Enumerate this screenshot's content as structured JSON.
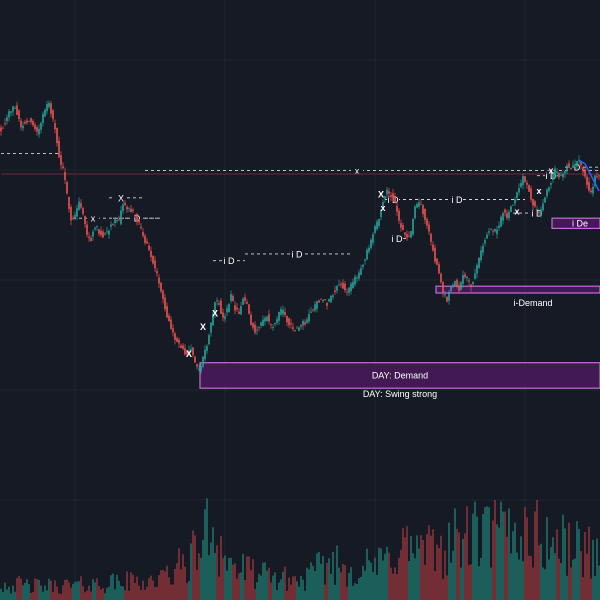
{
  "chart_data": {
    "type": "candlestick",
    "colors": {
      "background": "#161a25",
      "bull": "#26a69a",
      "bear": "#ef5350",
      "zone_fill": "#4a1a5c",
      "zone_border": "#c76bd9",
      "guide": "#d1d4dc",
      "red_line": "#6e2a36",
      "blue_line": "#2962ff",
      "volume_bull": "#1e6f68",
      "volume_bear": "#8a3338"
    },
    "y_range": [
      0,
      100
    ],
    "price_path": [
      {
        "i": 0,
        "p": 78
      },
      {
        "i": 4,
        "p": 83
      },
      {
        "i": 7,
        "p": 85
      },
      {
        "i": 10,
        "p": 79
      },
      {
        "i": 14,
        "p": 81
      },
      {
        "i": 18,
        "p": 77
      },
      {
        "i": 22,
        "p": 84
      },
      {
        "i": 24,
        "p": 86
      },
      {
        "i": 27,
        "p": 78
      },
      {
        "i": 29,
        "p": 70
      },
      {
        "i": 31,
        "p": 66
      },
      {
        "i": 33,
        "p": 59
      },
      {
        "i": 35,
        "p": 52
      },
      {
        "i": 37,
        "p": 53
      },
      {
        "i": 39,
        "p": 57
      },
      {
        "i": 41,
        "p": 53
      },
      {
        "i": 43,
        "p": 47
      },
      {
        "i": 45,
        "p": 46
      },
      {
        "i": 47,
        "p": 50
      },
      {
        "i": 49,
        "p": 48
      },
      {
        "i": 51,
        "p": 47
      },
      {
        "i": 53,
        "p": 48
      },
      {
        "i": 55,
        "p": 50
      },
      {
        "i": 57,
        "p": 51
      },
      {
        "i": 59,
        "p": 51
      },
      {
        "i": 61,
        "p": 56
      },
      {
        "i": 63,
        "p": 55
      },
      {
        "i": 65,
        "p": 54
      },
      {
        "i": 67,
        "p": 53
      },
      {
        "i": 69,
        "p": 50
      },
      {
        "i": 71,
        "p": 47
      },
      {
        "i": 73,
        "p": 44
      },
      {
        "i": 75,
        "p": 41
      },
      {
        "i": 77,
        "p": 37
      },
      {
        "i": 79,
        "p": 33
      },
      {
        "i": 81,
        "p": 29
      },
      {
        "i": 83,
        "p": 23
      },
      {
        "i": 85,
        "p": 20
      },
      {
        "i": 87,
        "p": 17
      },
      {
        "i": 89,
        "p": 15
      },
      {
        "i": 91,
        "p": 13
      },
      {
        "i": 93,
        "p": 12
      },
      {
        "i": 95,
        "p": 14
      },
      {
        "i": 97,
        "p": 9
      },
      {
        "i": 99,
        "p": 7
      },
      {
        "i": 101,
        "p": 11
      },
      {
        "i": 103,
        "p": 15
      },
      {
        "i": 105,
        "p": 21
      },
      {
        "i": 107,
        "p": 28
      },
      {
        "i": 109,
        "p": 27
      },
      {
        "i": 111,
        "p": 22
      },
      {
        "i": 113,
        "p": 25
      },
      {
        "i": 115,
        "p": 29
      },
      {
        "i": 117,
        "p": 25
      },
      {
        "i": 119,
        "p": 24
      },
      {
        "i": 121,
        "p": 28
      },
      {
        "i": 123,
        "p": 27
      },
      {
        "i": 125,
        "p": 21
      },
      {
        "i": 127,
        "p": 19
      },
      {
        "i": 129,
        "p": 20
      },
      {
        "i": 131,
        "p": 22
      },
      {
        "i": 133,
        "p": 23
      },
      {
        "i": 135,
        "p": 20
      },
      {
        "i": 137,
        "p": 21
      },
      {
        "i": 139,
        "p": 24
      },
      {
        "i": 141,
        "p": 25
      },
      {
        "i": 143,
        "p": 22
      },
      {
        "i": 145,
        "p": 20
      },
      {
        "i": 147,
        "p": 19
      },
      {
        "i": 149,
        "p": 20
      },
      {
        "i": 151,
        "p": 21
      },
      {
        "i": 153,
        "p": 22
      },
      {
        "i": 155,
        "p": 25
      },
      {
        "i": 157,
        "p": 26
      },
      {
        "i": 159,
        "p": 28
      },
      {
        "i": 161,
        "p": 28
      },
      {
        "i": 163,
        "p": 27
      },
      {
        "i": 165,
        "p": 29
      },
      {
        "i": 167,
        "p": 31
      },
      {
        "i": 169,
        "p": 33
      },
      {
        "i": 171,
        "p": 32
      },
      {
        "i": 173,
        "p": 30
      },
      {
        "i": 175,
        "p": 32
      },
      {
        "i": 177,
        "p": 34
      },
      {
        "i": 179,
        "p": 36
      },
      {
        "i": 181,
        "p": 39
      },
      {
        "i": 183,
        "p": 42
      },
      {
        "i": 185,
        "p": 45
      },
      {
        "i": 187,
        "p": 49
      },
      {
        "i": 189,
        "p": 52
      },
      {
        "i": 191,
        "p": 57
      },
      {
        "i": 193,
        "p": 60
      },
      {
        "i": 195,
        "p": 59
      },
      {
        "i": 197,
        "p": 56
      },
      {
        "i": 199,
        "p": 51
      },
      {
        "i": 201,
        "p": 48
      },
      {
        "i": 203,
        "p": 46
      },
      {
        "i": 205,
        "p": 48
      },
      {
        "i": 207,
        "p": 55
      },
      {
        "i": 209,
        "p": 57
      },
      {
        "i": 211,
        "p": 54
      },
      {
        "i": 213,
        "p": 50
      },
      {
        "i": 215,
        "p": 45
      },
      {
        "i": 217,
        "p": 40
      },
      {
        "i": 219,
        "p": 36
      },
      {
        "i": 221,
        "p": 30
      },
      {
        "i": 223,
        "p": 28
      },
      {
        "i": 225,
        "p": 32
      },
      {
        "i": 227,
        "p": 34
      },
      {
        "i": 229,
        "p": 31
      },
      {
        "i": 231,
        "p": 36
      },
      {
        "i": 233,
        "p": 34
      },
      {
        "i": 235,
        "p": 32
      },
      {
        "i": 237,
        "p": 36
      },
      {
        "i": 239,
        "p": 40
      },
      {
        "i": 241,
        "p": 44
      },
      {
        "i": 243,
        "p": 47
      },
      {
        "i": 245,
        "p": 49
      },
      {
        "i": 247,
        "p": 48
      },
      {
        "i": 249,
        "p": 50
      },
      {
        "i": 251,
        "p": 54
      },
      {
        "i": 253,
        "p": 52
      },
      {
        "i": 255,
        "p": 55
      },
      {
        "i": 257,
        "p": 58
      },
      {
        "i": 259,
        "p": 61
      },
      {
        "i": 261,
        "p": 64
      },
      {
        "i": 263,
        "p": 62
      },
      {
        "i": 265,
        "p": 58
      },
      {
        "i": 267,
        "p": 55
      },
      {
        "i": 269,
        "p": 53
      },
      {
        "i": 271,
        "p": 57
      },
      {
        "i": 273,
        "p": 60
      },
      {
        "i": 275,
        "p": 63
      },
      {
        "i": 277,
        "p": 66
      },
      {
        "i": 279,
        "p": 64
      },
      {
        "i": 281,
        "p": 65
      },
      {
        "i": 283,
        "p": 68
      },
      {
        "i": 285,
        "p": 67
      },
      {
        "i": 287,
        "p": 68
      },
      {
        "i": 289,
        "p": 69
      },
      {
        "i": 291,
        "p": 66
      },
      {
        "i": 293,
        "p": 62
      },
      {
        "i": 295,
        "p": 59
      },
      {
        "i": 297,
        "p": 64
      }
    ],
    "volume_profile": [
      {
        "i": 0,
        "v": 12
      },
      {
        "i": 20,
        "v": 10
      },
      {
        "i": 40,
        "v": 11
      },
      {
        "i": 60,
        "v": 13
      },
      {
        "i": 80,
        "v": 15
      },
      {
        "i": 95,
        "v": 30
      },
      {
        "i": 105,
        "v": 55
      },
      {
        "i": 115,
        "v": 25
      },
      {
        "i": 130,
        "v": 18
      },
      {
        "i": 150,
        "v": 14
      },
      {
        "i": 165,
        "v": 28
      },
      {
        "i": 175,
        "v": 22
      },
      {
        "i": 190,
        "v": 26
      },
      {
        "i": 200,
        "v": 40
      },
      {
        "i": 215,
        "v": 35
      },
      {
        "i": 230,
        "v": 45
      },
      {
        "i": 245,
        "v": 48
      },
      {
        "i": 260,
        "v": 52
      },
      {
        "i": 275,
        "v": 42
      },
      {
        "i": 290,
        "v": 38
      },
      {
        "i": 299,
        "v": 35
      }
    ],
    "zones": [
      {
        "name": "day-demand",
        "label": "DAY: Demand",
        "sublabel": "DAY: Swing strong",
        "x0": 100,
        "x1": 299,
        "top": 9.5,
        "bottom": 2
      },
      {
        "name": "i-demand",
        "label": "i-Demand",
        "sublabel": "",
        "x0": 218,
        "x1": 299,
        "top": 32,
        "bottom": 30
      },
      {
        "name": "i-demand-small",
        "label": "i De",
        "sublabel": "",
        "x0": 276,
        "x1": 299,
        "top": 52,
        "bottom": 49
      }
    ],
    "levels": [
      {
        "name": "left-swing-level",
        "style": "dashed",
        "y": 71,
        "x0": 0,
        "x1": 30,
        "label": "",
        "label_at": 0
      },
      {
        "name": "x-level-top",
        "style": "dashed",
        "y": 66,
        "x0": 72,
        "x1": 299,
        "label": "x",
        "label_at": 178
      },
      {
        "name": "red-level",
        "style": "solid-red",
        "y": 65,
        "x0": 0,
        "x1": 299,
        "label": "",
        "label_at": 0
      },
      {
        "name": "lower-left-level",
        "style": "dashed",
        "y": 52,
        "x0": 36,
        "x1": 80,
        "label": "x",
        "label_at": 46
      },
      {
        "name": "lower-left-d",
        "style": "dashed",
        "y": 52,
        "x0": 56,
        "x1": 80,
        "label": "D",
        "label_at": 68
      },
      {
        "name": "x-mid",
        "style": "dashed",
        "y": 58,
        "x0": 54,
        "x1": 72,
        "label": "X",
        "label_at": 60
      },
      {
        "name": "id-level-1",
        "style": "dashed",
        "y": 39.5,
        "x0": 106,
        "x1": 122,
        "label": "i D",
        "label_at": 114
      },
      {
        "name": "id-level-2",
        "style": "dashed",
        "y": 41.5,
        "x0": 122,
        "x1": 176,
        "label": "i D",
        "label_at": 148
      },
      {
        "name": "id-level-3",
        "style": "dashed",
        "y": 57.5,
        "x0": 198,
        "x1": 262,
        "label": "i D",
        "label_at": 228
      },
      {
        "name": "id-level-4",
        "style": "dashed",
        "y": 57.5,
        "x0": 192,
        "x1": 198,
        "label": "i D",
        "label_at": 196
      },
      {
        "name": "id-level-5",
        "style": "dashed",
        "y": 64.5,
        "x0": 268,
        "x1": 280,
        "label": "i D",
        "label_at": 275
      },
      {
        "name": "id-level-6",
        "style": "dashed",
        "y": 53.5,
        "x0": 256,
        "x1": 264,
        "label": "i D",
        "label_at": 268
      },
      {
        "name": "id-level-7",
        "style": "dashed",
        "y": 46,
        "x0": 198,
        "x1": 204,
        "label": "i D",
        "label_at": 198
      },
      {
        "name": "d-level-right",
        "style": "dashed",
        "y": 67,
        "x0": 282,
        "x1": 299,
        "label": "D",
        "label_at": 288
      }
    ],
    "markers": [
      {
        "name": "marker-x-1",
        "label": "X",
        "i": 94,
        "p": 12
      },
      {
        "name": "marker-x-2",
        "label": "X",
        "i": 101,
        "p": 20
      },
      {
        "name": "marker-x-3",
        "label": "X",
        "i": 107,
        "p": 24
      },
      {
        "name": "marker-x-4",
        "label": "X",
        "i": 190,
        "p": 59
      },
      {
        "name": "marker-x-5",
        "label": "x",
        "i": 191,
        "p": 55
      },
      {
        "name": "marker-x-6",
        "label": "x",
        "i": 258,
        "p": 54
      },
      {
        "name": "marker-x-7",
        "label": "x",
        "i": 269,
        "p": 60
      },
      {
        "name": "marker-x-8",
        "label": "x",
        "i": 275,
        "p": 66
      }
    ]
  }
}
